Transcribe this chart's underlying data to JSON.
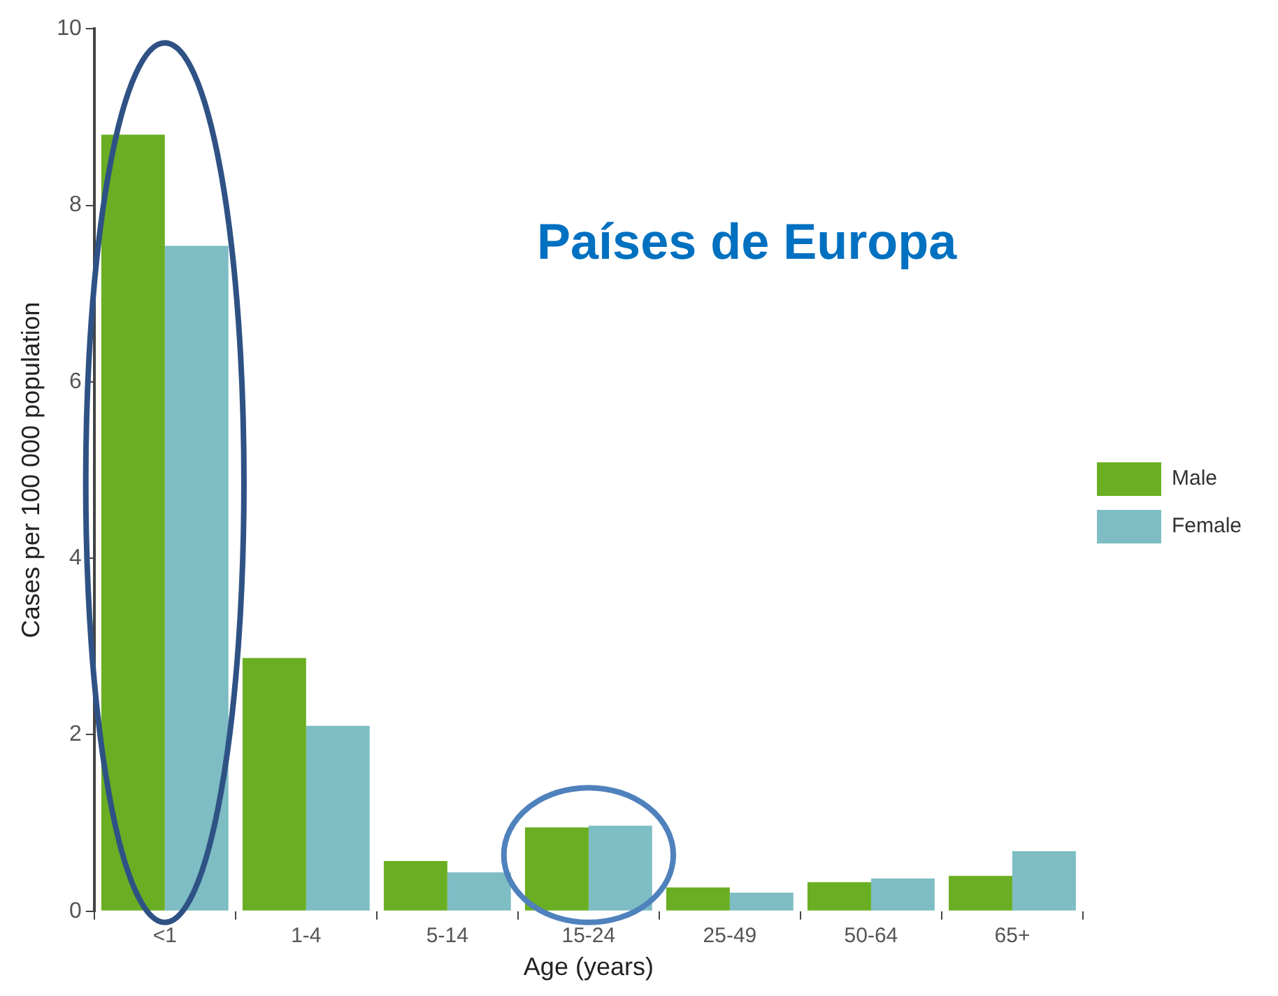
{
  "chart_data": {
    "type": "bar",
    "annotations": [
      "Países de Europa"
    ],
    "xlabel": "Age (years)",
    "ylabel": "Cases per 100 000 population",
    "categories": [
      "<1",
      "1-4",
      "5-14",
      "15-24",
      "25-49",
      "50-64",
      "65+"
    ],
    "series": [
      {
        "name": "Male",
        "color": "#6aaf23",
        "values": [
          8.8,
          2.87,
          0.57,
          0.95,
          0.27,
          0.33,
          0.4
        ]
      },
      {
        "name": "Female",
        "color": "#7dbdc3",
        "values": [
          7.54,
          2.1,
          0.44,
          0.97,
          0.21,
          0.37,
          0.68
        ]
      }
    ],
    "ylim": [
      0,
      10
    ],
    "yticks": [
      0,
      2,
      4,
      6,
      8,
      10
    ],
    "grid": false,
    "legend": "right"
  }
}
